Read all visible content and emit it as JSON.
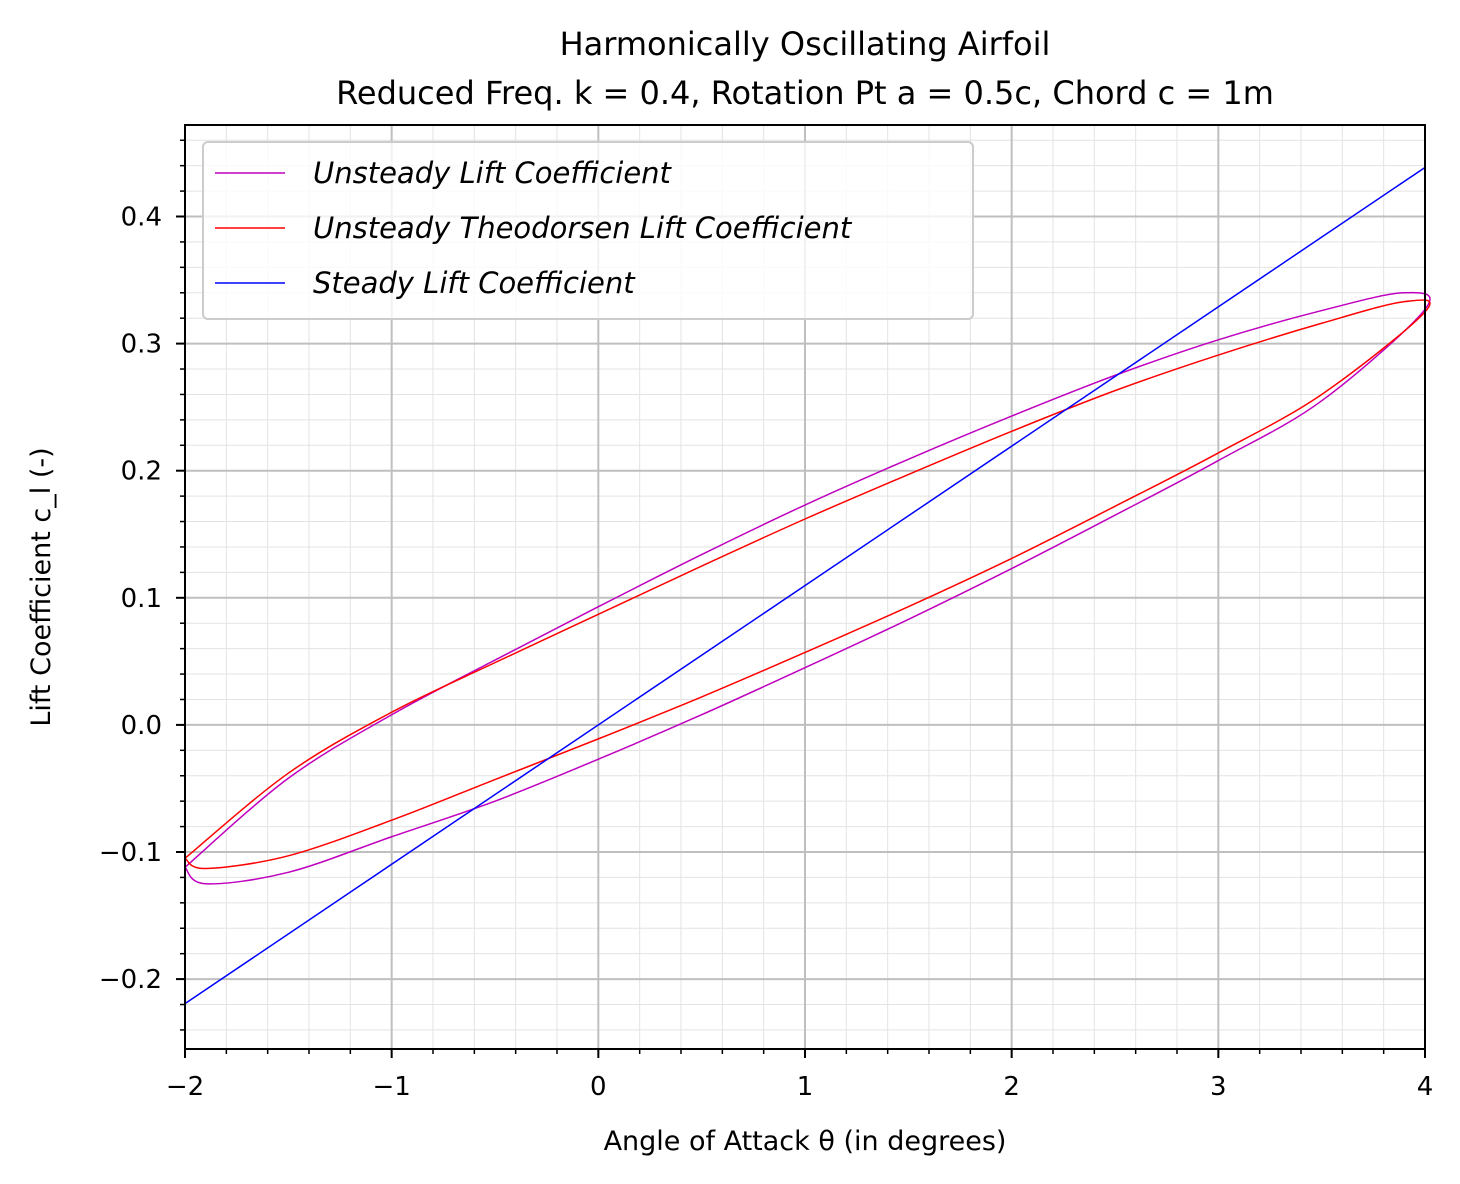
{
  "chart_data": {
    "type": "line",
    "title": "Harmonically Oscillating Airfoil",
    "subtitle": "Reduced Freq. k = 0.4, Rotation Pt a = 0.5c, Chord c = 1m",
    "xlabel": "Angle of Attack θ (in degrees)",
    "ylabel": "Lift Coefficient c_l (-)",
    "xlim": [
      -2,
      4
    ],
    "ylim": [
      -0.255,
      0.472
    ],
    "xticks": [
      -2,
      -1,
      0,
      1,
      2,
      3,
      4
    ],
    "xtick_labels": [
      "−2",
      "−1",
      "0",
      "1",
      "2",
      "3",
      "4"
    ],
    "yticks": [
      -0.2,
      -0.1,
      0.0,
      0.1,
      0.2,
      0.3,
      0.4
    ],
    "ytick_labels": [
      "−0.2",
      "−0.1",
      "0.0",
      "0.1",
      "0.2",
      "0.3",
      "0.4"
    ],
    "grid": "major and minor",
    "legend_position": "upper-left",
    "series": [
      {
        "name": "Unsteady Lift Coefficient",
        "color": "#bf00bf",
        "kind": "hysteresis-loop",
        "theta_mean": 1.0,
        "theta_amplitude": 3.0,
        "cl_upper": [
          [
            -2.0,
            -0.112
          ],
          [
            -1.5,
            -0.042
          ],
          [
            -1.0,
            0.008
          ],
          [
            -0.5,
            0.051
          ],
          [
            0.0,
            0.093
          ],
          [
            0.5,
            0.134
          ],
          [
            1.0,
            0.173
          ],
          [
            1.5,
            0.209
          ],
          [
            2.0,
            0.243
          ],
          [
            2.5,
            0.275
          ],
          [
            3.0,
            0.303
          ],
          [
            3.5,
            0.326
          ],
          [
            3.9,
            0.34
          ],
          [
            4.0,
            0.327
          ]
        ],
        "cl_lower": [
          [
            -2.0,
            -0.112
          ],
          [
            -1.9,
            -0.125
          ],
          [
            -1.5,
            -0.116
          ],
          [
            -1.0,
            -0.088
          ],
          [
            -0.5,
            -0.06
          ],
          [
            0.0,
            -0.027
          ],
          [
            0.5,
            0.008
          ],
          [
            1.0,
            0.045
          ],
          [
            1.5,
            0.083
          ],
          [
            2.0,
            0.123
          ],
          [
            2.5,
            0.165
          ],
          [
            3.0,
            0.208
          ],
          [
            3.5,
            0.255
          ],
          [
            4.0,
            0.327
          ]
        ]
      },
      {
        "name": "Unsteady Theodorsen Lift Coefficient",
        "color": "#ff0000",
        "kind": "hysteresis-loop",
        "theta_mean": 1.0,
        "theta_amplitude": 3.0,
        "cl_upper": [
          [
            -2.0,
            -0.105
          ],
          [
            -1.5,
            -0.038
          ],
          [
            -1.0,
            0.01
          ],
          [
            -0.5,
            0.049
          ],
          [
            0.0,
            0.087
          ],
          [
            0.5,
            0.125
          ],
          [
            1.0,
            0.162
          ],
          [
            1.5,
            0.197
          ],
          [
            2.0,
            0.231
          ],
          [
            2.5,
            0.263
          ],
          [
            3.0,
            0.291
          ],
          [
            3.5,
            0.316
          ],
          [
            3.9,
            0.333
          ],
          [
            4.0,
            0.325
          ]
        ],
        "cl_lower": [
          [
            -2.0,
            -0.105
          ],
          [
            -1.9,
            -0.113
          ],
          [
            -1.5,
            -0.103
          ],
          [
            -1.0,
            -0.075
          ],
          [
            -0.5,
            -0.043
          ],
          [
            0.0,
            -0.011
          ],
          [
            0.5,
            0.022
          ],
          [
            1.0,
            0.057
          ],
          [
            1.5,
            0.093
          ],
          [
            2.0,
            0.131
          ],
          [
            2.5,
            0.172
          ],
          [
            3.0,
            0.214
          ],
          [
            3.5,
            0.26
          ],
          [
            4.0,
            0.325
          ]
        ]
      },
      {
        "name": "Steady Lift Coefficient",
        "color": "#0000ff",
        "x": [
          -2,
          4
        ],
        "y": [
          -0.2193,
          0.4386
        ]
      }
    ]
  }
}
